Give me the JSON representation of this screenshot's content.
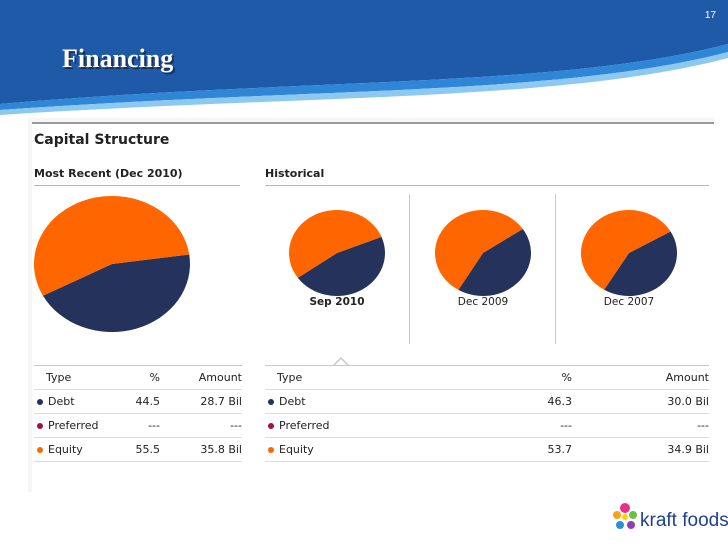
{
  "slide": {
    "number": "17",
    "title": "Financing"
  },
  "colors": {
    "debt": "#24325c",
    "preferred": "#a01540",
    "equity": "#ff6600",
    "header_blue": "#1e5aa8"
  },
  "panel": {
    "title": "Capital Structure",
    "recent_title": "Most Recent (Dec 2010)",
    "historical_title": "Historical"
  },
  "chart_data": [
    {
      "type": "pie",
      "title": "Most Recent (Dec 2010)",
      "categories": [
        "Debt",
        "Preferred",
        "Equity"
      ],
      "values": [
        44.5,
        0,
        55.5
      ]
    },
    {
      "type": "pie",
      "title": "Sep 2010",
      "categories": [
        "Debt",
        "Preferred",
        "Equity"
      ],
      "values": [
        46.3,
        0,
        53.7
      ]
    },
    {
      "type": "pie",
      "title": "Dec 2009",
      "categories": [
        "Debt",
        "Equity"
      ],
      "values": [
        43,
        57
      ]
    },
    {
      "type": "pie",
      "title": "Dec 2007",
      "categories": [
        "Debt",
        "Equity"
      ],
      "values": [
        42,
        58
      ]
    }
  ],
  "historical_labels": [
    "Sep 2010",
    "Dec 2009",
    "Dec 2007"
  ],
  "table_headers": {
    "type": "Type",
    "pct": "%",
    "amount": "Amount"
  },
  "recent_table": [
    {
      "type": "Debt",
      "pct": "44.5",
      "amount": "28.7 Bil"
    },
    {
      "type": "Preferred",
      "pct": "---",
      "amount": "---"
    },
    {
      "type": "Equity",
      "pct": "55.5",
      "amount": "35.8 Bil"
    }
  ],
  "historical_table": [
    {
      "type": "Debt",
      "pct": "46.3",
      "amount": "30.0 Bil"
    },
    {
      "type": "Preferred",
      "pct": "---",
      "amount": "---"
    },
    {
      "type": "Equity",
      "pct": "53.7",
      "amount": "34.9 Bil"
    }
  ],
  "logo": {
    "text": "kraft foods"
  }
}
